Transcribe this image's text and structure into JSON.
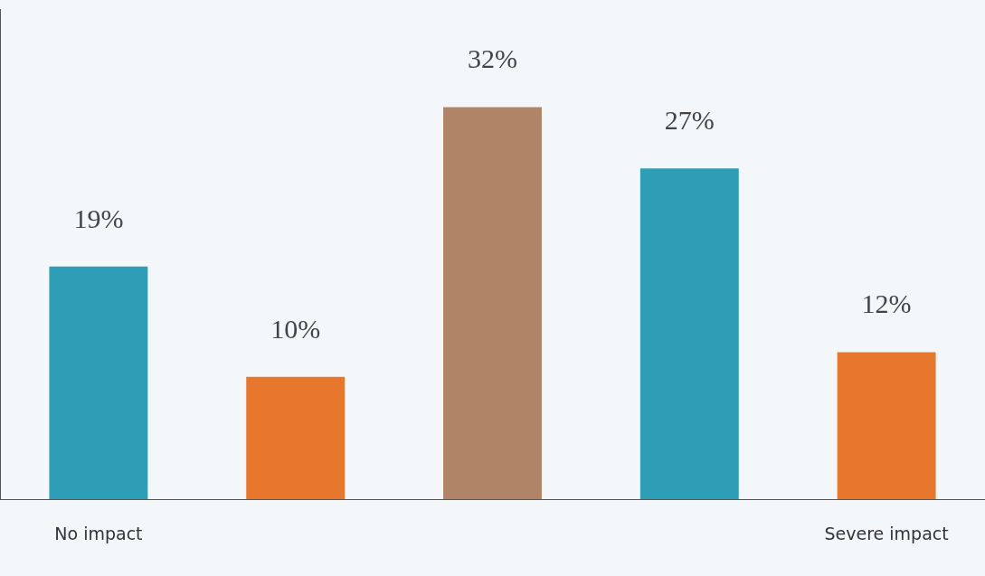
{
  "chart_data": {
    "type": "bar",
    "categories": [
      "No impact",
      null,
      null,
      null,
      "Severe impact"
    ],
    "values": [
      19,
      10,
      32,
      27,
      12
    ],
    "colors": [
      "#2e9db6",
      "#e8772e",
      "#b08466",
      "#2e9db6",
      "#e8772e"
    ],
    "value_labels": [
      "19%",
      "10%",
      "32%",
      "27%",
      "12%"
    ],
    "grid": false,
    "legend": false
  }
}
